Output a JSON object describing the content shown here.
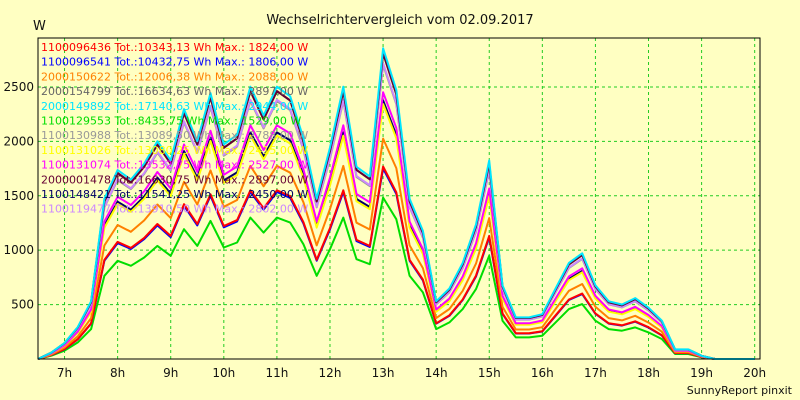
{
  "chart_data": {
    "type": "line",
    "title": "Wechselrichtervergleich vom 02.09.2017",
    "ylabel": "W",
    "credit": "SunnyReport pinxit",
    "x_domain": [
      6.5,
      20.1
    ],
    "ylim": [
      0,
      2950
    ],
    "y_ticks": [
      500,
      1000,
      1500,
      2000,
      2500
    ],
    "x_ticks": [
      7,
      8,
      9,
      10,
      11,
      12,
      13,
      14,
      15,
      16,
      17,
      18,
      19,
      20
    ],
    "x_tick_labels": [
      "7h",
      "8h",
      "9h",
      "10h",
      "11h",
      "12h",
      "13h",
      "14h",
      "15h",
      "16h",
      "17h",
      "18h",
      "19h",
      "20h"
    ],
    "grid": true,
    "background_color": "#ffffc2",
    "grid_color": "#22cc22",
    "x": [
      6.5,
      6.75,
      7.0,
      7.25,
      7.5,
      7.75,
      8.0,
      8.25,
      8.5,
      8.75,
      9.0,
      9.25,
      9.5,
      9.75,
      10.0,
      10.25,
      10.5,
      10.75,
      11.0,
      11.25,
      11.5,
      11.75,
      12.0,
      12.25,
      12.5,
      12.75,
      13.0,
      13.25,
      13.5,
      13.75,
      14.0,
      14.25,
      14.5,
      14.75,
      15.0,
      15.25,
      15.5,
      15.75,
      16.0,
      16.25,
      16.5,
      16.75,
      17.0,
      17.25,
      17.5,
      17.75,
      18.0,
      18.25,
      18.5,
      18.75,
      19.0,
      19.25,
      19.5,
      19.75,
      20.0
    ],
    "base": [
      0.0,
      0.02,
      0.05,
      0.1,
      0.18,
      0.5,
      0.59,
      0.56,
      0.61,
      0.68,
      0.62,
      0.78,
      0.68,
      0.83,
      0.67,
      0.7,
      0.85,
      0.76,
      0.85,
      0.82,
      0.69,
      0.5,
      0.66,
      0.85,
      0.6,
      0.57,
      0.97,
      0.84,
      0.5,
      0.4,
      0.18,
      0.22,
      0.3,
      0.42,
      0.62,
      0.23,
      0.13,
      0.13,
      0.14,
      0.22,
      0.3,
      0.33,
      0.23,
      0.18,
      0.17,
      0.19,
      0.16,
      0.12,
      0.03,
      0.03,
      0.01,
      0.0,
      0.0,
      0.0,
      0.0
    ],
    "series": [
      {
        "label": "1100096436 Tot.:10343,13 Wh Max.: 1824,00 W",
        "color": "#ff0000",
        "peak": 1824
      },
      {
        "label": "1100096541 Tot.:10432,75 Wh Max.: 1806,00 W",
        "color": "#0000ff",
        "peak": 1806
      },
      {
        "label": "2000150622 Tot.:12006,38 Wh Max.: 2088,00 W",
        "color": "#ff8000",
        "peak": 2088
      },
      {
        "label": "2000154799 Tot.:16634,63 Wh Max.: 2897,00 W",
        "color": "#666666",
        "peak": 2897
      },
      {
        "label": "2000149892 Tot.:17140,63 Wh Max.: 2944,00 W",
        "color": "#00e5ff",
        "peak": 2944
      },
      {
        "label": "1100129553 Tot.:8435,75 Wh Max.: 1529,00 W",
        "color": "#00dd00",
        "peak": 1529
      },
      {
        "label": "1100130988 Tot.:13089,50 Wh Max.: 2788,00 W",
        "color": "#999999",
        "peak": 2788
      },
      {
        "label": "1100131026 Tot.:13080,25 Wh Max.: 2415,00 W",
        "color": "#ffff00",
        "peak": 2415
      },
      {
        "label": "1100131074 Tot.:13532,75 Wh Max.: 2527,00 W",
        "color": "#ff00ff",
        "peak": 2527
      },
      {
        "label": "2000001478 Tot.:16630,75 Wh Max.: 2897,00 W",
        "color": "#660033",
        "peak": 2897
      },
      {
        "label": "1100148421 Tot.:11541,25 Wh Max.: 2450,00 W",
        "color": "#000066",
        "peak": 2450
      },
      {
        "label": "1100119477 Tot.:13910,50 Wh Max.: 2802,00 W",
        "color": "#cc88ff",
        "peak": 2802
      }
    ]
  }
}
